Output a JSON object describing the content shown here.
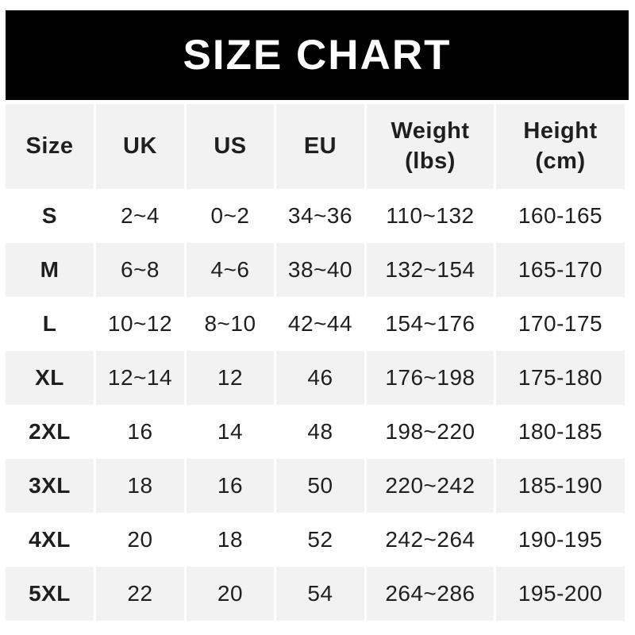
{
  "banner": {
    "title": "SIZE CHART",
    "bg_color": "#000000",
    "text_color": "#ffffff"
  },
  "table": {
    "columns": [
      {
        "key": "size",
        "label": "Size"
      },
      {
        "key": "uk",
        "label": "UK"
      },
      {
        "key": "us",
        "label": "US"
      },
      {
        "key": "eu",
        "label": "EU"
      },
      {
        "key": "weight",
        "label": "Weight\n(lbs)"
      },
      {
        "key": "height",
        "label": "Height\n(cm)"
      }
    ],
    "rows": [
      {
        "size": "S",
        "uk": "2~4",
        "us": "0~2",
        "eu": "34~36",
        "weight": "110~132",
        "height": "160-165"
      },
      {
        "size": "M",
        "uk": "6~8",
        "us": "4~6",
        "eu": "38~40",
        "weight": "132~154",
        "height": "165-170"
      },
      {
        "size": "L",
        "uk": "10~12",
        "us": "8~10",
        "eu": "42~44",
        "weight": "154~176",
        "height": "170-175"
      },
      {
        "size": "XL",
        "uk": "12~14",
        "us": "12",
        "eu": "46",
        "weight": "176~198",
        "height": "175-180"
      },
      {
        "size": "2XL",
        "uk": "16",
        "us": "14",
        "eu": "48",
        "weight": "198~220",
        "height": "180-185"
      },
      {
        "size": "3XL",
        "uk": "18",
        "us": "16",
        "eu": "50",
        "weight": "220~242",
        "height": "185-190"
      },
      {
        "size": "4XL",
        "uk": "20",
        "us": "18",
        "eu": "52",
        "weight": "242~264",
        "height": "190-195"
      },
      {
        "size": "5XL",
        "uk": "22",
        "us": "20",
        "eu": "54",
        "weight": "264~286",
        "height": "195-200"
      }
    ],
    "colors": {
      "header_row_bg": "#f2f2f2",
      "row_alt_bg": "#f2f2f2",
      "row_bg": "#ffffff",
      "text": "#1f1f1f"
    }
  }
}
